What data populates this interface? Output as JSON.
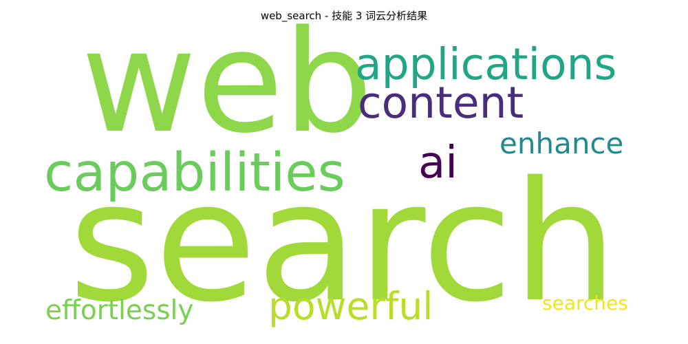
{
  "title": "web_search - 技能 3 词云分析结果",
  "words": [
    {
      "id": "web",
      "text": "web",
      "color": "#8ed64a"
    },
    {
      "id": "search",
      "text": "search",
      "color": "#a2d93a"
    },
    {
      "id": "capabilities",
      "text": "capabilities",
      "color": "#6acd5b"
    },
    {
      "id": "applications",
      "text": "applications",
      "color": "#21a685"
    },
    {
      "id": "content",
      "text": "content",
      "color": "#472d7b"
    },
    {
      "id": "enhance",
      "text": "enhance",
      "color": "#23898e"
    },
    {
      "id": "ai",
      "text": "ai",
      "color": "#440154"
    },
    {
      "id": "powerful",
      "text": "powerful",
      "color": "#b8de29"
    },
    {
      "id": "effortlessly",
      "text": "effortlessly",
      "color": "#7ad151"
    },
    {
      "id": "searches",
      "text": "searches",
      "color": "#f1e51d"
    }
  ]
}
